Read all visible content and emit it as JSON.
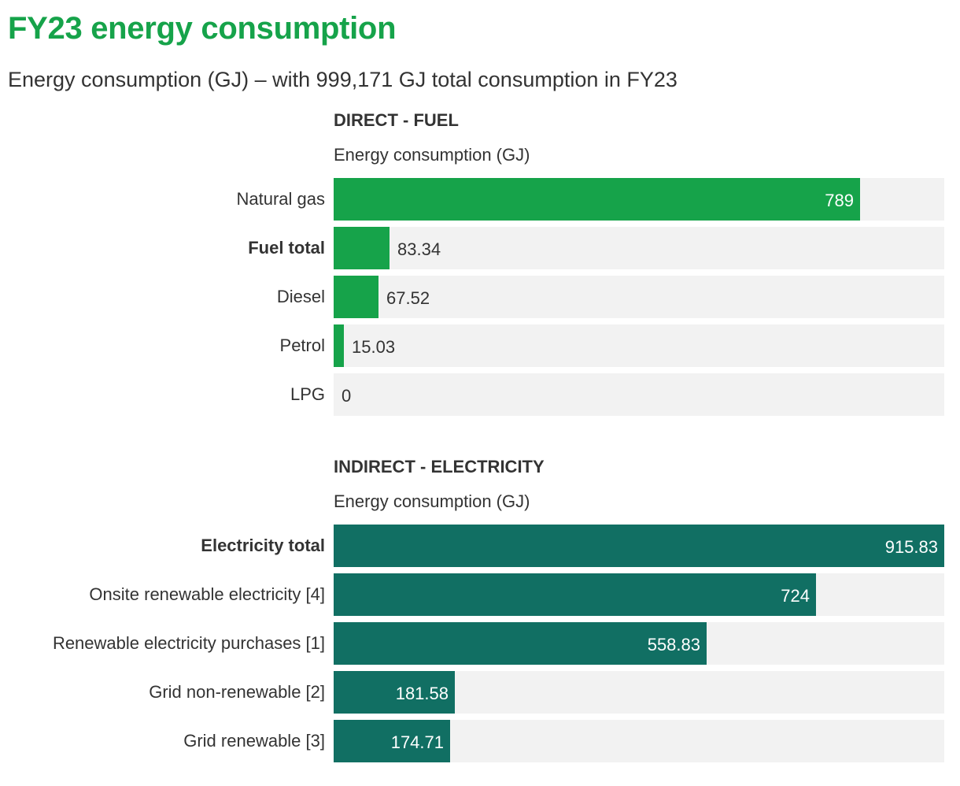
{
  "title": "FY23 energy consumption",
  "subtitle": "Energy consumption (GJ) – with 999,171 GJ total consumption in FY23",
  "colors": {
    "title": "#16a34a",
    "fuel_bar": "#16a34a",
    "electricity_bar": "#116f63",
    "track": "#f2f2f2"
  },
  "chart_data": [
    {
      "type": "bar",
      "orientation": "horizontal",
      "title": "DIRECT - FUEL",
      "xlabel": "Energy consumption (GJ)",
      "xlim": [
        0,
        915.83
      ],
      "grid": false,
      "categories": [
        "Natural gas",
        "Fuel total",
        "Diesel",
        "Petrol",
        "LPG"
      ],
      "values": [
        789,
        83.34,
        67.52,
        15.03,
        0
      ],
      "value_labels": [
        "789",
        "83.34",
        "67.52",
        "15.03",
        "0"
      ],
      "bold": [
        false,
        true,
        false,
        false,
        false
      ]
    },
    {
      "type": "bar",
      "orientation": "horizontal",
      "title": "INDIRECT - ELECTRICITY",
      "xlabel": "Energy consumption (GJ)",
      "xlim": [
        0,
        915.83
      ],
      "grid": false,
      "categories": [
        "Electricity total",
        "Onsite renewable electricity [4]",
        "Renewable electricity purchases [1]",
        "Grid non-renewable [2]",
        "Grid renewable [3]"
      ],
      "values": [
        915.83,
        724,
        558.83,
        181.58,
        174.71
      ],
      "value_labels": [
        "915.83",
        "724",
        "558.83",
        "181.58",
        "174.71"
      ],
      "bold": [
        true,
        false,
        false,
        false,
        false
      ]
    }
  ]
}
